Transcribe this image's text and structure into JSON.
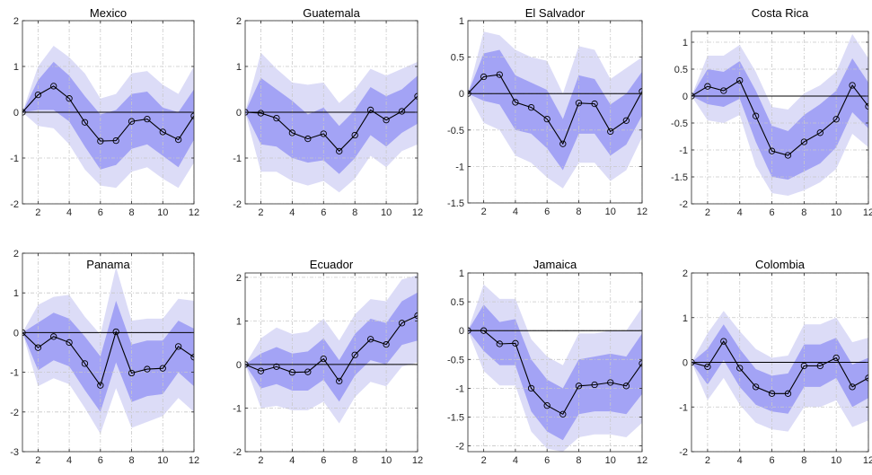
{
  "chart_data": [
    {
      "type": "line",
      "title": "Mexico",
      "x": [
        1,
        2,
        3,
        4,
        5,
        6,
        7,
        8,
        9,
        10,
        11,
        12
      ],
      "xlim": [
        1,
        12
      ],
      "ylim": [
        -2,
        2
      ],
      "xticks": [
        2,
        4,
        6,
        8,
        10,
        12
      ],
      "yticks": [
        -2,
        -1,
        0,
        1,
        2
      ],
      "grid": true,
      "series": [
        {
          "values": [
            0,
            0.38,
            0.57,
            0.3,
            -0.22,
            -0.63,
            -0.62,
            -0.2,
            -0.15,
            -0.43,
            -0.6,
            -0.08
          ]
        }
      ],
      "band_inner": {
        "lower": [
          0,
          0.05,
          0.05,
          -0.2,
          -0.75,
          -1.25,
          -1.15,
          -0.8,
          -0.7,
          -0.95,
          -1.2,
          -0.6
        ],
        "upper": [
          0,
          0.7,
          1.1,
          0.8,
          0.35,
          -0.05,
          0.05,
          0.4,
          0.45,
          0.1,
          0,
          0.5
        ]
      },
      "band_outer": {
        "lower": [
          0,
          -0.3,
          -0.35,
          -0.7,
          -1.25,
          -1.6,
          -1.65,
          -1.3,
          -1.2,
          -1.45,
          -1.65,
          -1.1
        ],
        "upper": [
          0,
          1,
          1.45,
          1.2,
          0.85,
          0.3,
          0.4,
          0.85,
          0.9,
          0.6,
          0.4,
          1
        ]
      }
    },
    {
      "type": "line",
      "title": "Guatemala",
      "x": [
        1,
        2,
        3,
        4,
        5,
        6,
        7,
        8,
        9,
        10,
        11,
        12
      ],
      "xlim": [
        1,
        12
      ],
      "ylim": [
        -2,
        2
      ],
      "xticks": [
        2,
        4,
        6,
        8,
        10,
        12
      ],
      "yticks": [
        -2,
        -1,
        0,
        1,
        2
      ],
      "grid": true,
      "series": [
        {
          "values": [
            0,
            -0.02,
            -0.13,
            -0.45,
            -0.58,
            -0.47,
            -0.85,
            -0.5,
            0.05,
            -0.17,
            0.02,
            0.35
          ]
        }
      ],
      "band_inner": {
        "lower": [
          0,
          -0.7,
          -0.75,
          -1.0,
          -1.1,
          -1.05,
          -1.35,
          -1.0,
          -0.5,
          -0.75,
          -0.45,
          -0.25
        ],
        "upper": [
          0,
          0.75,
          0.5,
          0.25,
          -0.05,
          0.1,
          -0.3,
          0.05,
          0.55,
          0.35,
          0.5,
          0.8
        ]
      },
      "band_outer": {
        "lower": [
          0,
          -1.3,
          -1.3,
          -1.5,
          -1.6,
          -1.5,
          -1.75,
          -1.45,
          -0.95,
          -1.2,
          -0.85,
          -0.7
        ],
        "upper": [
          0,
          1.3,
          0.95,
          0.65,
          0.6,
          0.65,
          0.2,
          0.5,
          0.95,
          0.8,
          0.95,
          1.1
        ]
      }
    },
    {
      "type": "line",
      "title": "El Salvador",
      "x": [
        1,
        2,
        3,
        4,
        5,
        6,
        7,
        8,
        9,
        10,
        11,
        12
      ],
      "xlim": [
        1,
        12
      ],
      "ylim": [
        -1.5,
        1
      ],
      "xticks": [
        2,
        4,
        6,
        8,
        10,
        12
      ],
      "yticks": [
        -1.5,
        -1,
        -0.5,
        0,
        0.5,
        1
      ],
      "grid": true,
      "series": [
        {
          "values": [
            0,
            0.23,
            0.26,
            -0.12,
            -0.19,
            -0.35,
            -0.69,
            -0.13,
            -0.14,
            -0.52,
            -0.37,
            0.03
          ]
        }
      ],
      "band_inner": {
        "lower": [
          0,
          -0.1,
          -0.15,
          -0.5,
          -0.55,
          -0.75,
          -1.05,
          -0.55,
          -0.55,
          -0.85,
          -0.7,
          -0.3
        ],
        "upper": [
          0,
          0.55,
          0.6,
          0.25,
          0.15,
          0.05,
          -0.35,
          0.25,
          0.2,
          -0.15,
          0,
          0.3
        ]
      },
      "band_outer": {
        "lower": [
          0,
          -0.4,
          -0.5,
          -0.85,
          -0.95,
          -1.15,
          -1.3,
          -0.95,
          -0.95,
          -1.2,
          -1.05,
          -0.6
        ],
        "upper": [
          0,
          0.85,
          0.8,
          0.6,
          0.5,
          0.45,
          0,
          0.65,
          0.6,
          0.2,
          0.35,
          0.5
        ]
      }
    },
    {
      "type": "line",
      "title": "Costa Rica",
      "x": [
        1,
        2,
        3,
        4,
        5,
        6,
        7,
        8,
        9,
        10,
        11,
        12
      ],
      "xlim": [
        1,
        12
      ],
      "ylim": [
        -2,
        1.2
      ],
      "xticks": [
        2,
        4,
        6,
        8,
        10,
        12
      ],
      "yticks": [
        -2,
        -1.5,
        -1,
        -0.5,
        0,
        0.5,
        1
      ],
      "grid": true,
      "series": [
        {
          "values": [
            0,
            0.18,
            0.1,
            0.29,
            -0.37,
            -1.02,
            -1.1,
            -0.85,
            -0.68,
            -0.43,
            0.2,
            -0.19
          ]
        }
      ],
      "band_inner": {
        "lower": [
          0,
          -0.15,
          -0.2,
          -0.05,
          -0.85,
          -1.5,
          -1.55,
          -1.4,
          -1.25,
          -0.95,
          -0.3,
          -0.6
        ],
        "upper": [
          0,
          0.5,
          0.45,
          0.65,
          0.1,
          -0.55,
          -0.65,
          -0.35,
          -0.15,
          0.1,
          0.7,
          0.25
        ]
      },
      "band_outer": {
        "lower": [
          0,
          -0.45,
          -0.5,
          -0.35,
          -1.3,
          -1.8,
          -1.85,
          -1.75,
          -1.6,
          -1.35,
          -0.7,
          -0.95
        ],
        "upper": [
          0,
          0.75,
          0.75,
          0.95,
          0.45,
          -0.2,
          -0.25,
          0.05,
          0.2,
          0.45,
          1.15,
          0.7
        ]
      }
    },
    {
      "type": "line",
      "title": "Panama",
      "x": [
        1,
        2,
        3,
        4,
        5,
        6,
        7,
        8,
        9,
        10,
        11,
        12
      ],
      "xlim": [
        1,
        12
      ],
      "ylim": [
        -3,
        2
      ],
      "xticks": [
        2,
        4,
        6,
        8,
        10,
        12
      ],
      "yticks": [
        -3,
        -2,
        -1,
        0,
        1,
        2
      ],
      "grid": true,
      "series": [
        {
          "values": [
            0,
            -0.38,
            -0.1,
            -0.25,
            -0.78,
            -1.33,
            0.02,
            -1.02,
            -0.92,
            -0.9,
            -0.35,
            -0.62
          ]
        }
      ],
      "band_inner": {
        "lower": [
          0,
          -0.95,
          -0.7,
          -0.85,
          -1.45,
          -2.0,
          -0.75,
          -1.75,
          -1.6,
          -1.55,
          -1.0,
          -1.35
        ],
        "upper": [
          0,
          0.25,
          0.5,
          0.35,
          -0.1,
          -0.6,
          0.8,
          -0.3,
          -0.2,
          -0.2,
          0.3,
          0.1
        ]
      },
      "band_outer": {
        "lower": [
          0,
          -1.35,
          -1.15,
          -1.3,
          -1.9,
          -2.55,
          -1.4,
          -2.4,
          -2.25,
          -2.1,
          -1.65,
          -2.0
        ],
        "upper": [
          0,
          0.7,
          0.9,
          0.95,
          0.4,
          -0.05,
          1.65,
          0.3,
          0.35,
          0.35,
          0.85,
          0.8
        ]
      }
    },
    {
      "type": "line",
      "title": "Ecuador",
      "x": [
        1,
        2,
        3,
        4,
        5,
        6,
        7,
        8,
        9,
        10,
        11,
        12
      ],
      "xlim": [
        1,
        12
      ],
      "ylim": [
        -2,
        2.1
      ],
      "xticks": [
        2,
        4,
        6,
        8,
        10,
        12
      ],
      "yticks": [
        -2,
        -1,
        0,
        1,
        2
      ],
      "grid": true,
      "series": [
        {
          "values": [
            0,
            -0.15,
            -0.05,
            -0.18,
            -0.17,
            0.13,
            -0.38,
            0.22,
            0.58,
            0.46,
            0.95,
            1.12
          ]
        }
      ],
      "band_inner": {
        "lower": [
          0,
          -0.55,
          -0.45,
          -0.6,
          -0.6,
          -0.35,
          -0.85,
          -0.25,
          0.1,
          0.0,
          0.45,
          0.55
        ],
        "upper": [
          0,
          0.25,
          0.4,
          0.25,
          0.3,
          0.6,
          0.1,
          0.7,
          1.05,
          0.95,
          1.45,
          1.65
        ]
      },
      "band_outer": {
        "lower": [
          0,
          -1.0,
          -0.95,
          -1.05,
          -1.05,
          -0.85,
          -1.35,
          -0.75,
          -0.4,
          -0.5,
          -0.05,
          0.05
        ],
        "upper": [
          0,
          0.6,
          0.85,
          0.7,
          0.75,
          1.05,
          0.55,
          1.15,
          1.5,
          1.45,
          1.95,
          2.05
        ]
      }
    },
    {
      "type": "line",
      "title": "Jamaica",
      "x": [
        1,
        2,
        3,
        4,
        5,
        6,
        7,
        8,
        9,
        10,
        11,
        12
      ],
      "xlim": [
        1,
        12
      ],
      "ylim": [
        -2.1,
        1
      ],
      "xticks": [
        2,
        4,
        6,
        8,
        10,
        12
      ],
      "yticks": [
        -2,
        -1.5,
        -1,
        -0.5,
        0,
        0.5,
        1
      ],
      "grid": true,
      "series": [
        {
          "values": [
            0,
            0,
            -0.23,
            -0.22,
            -1.0,
            -1.3,
            -1.45,
            -0.96,
            -0.94,
            -0.9,
            -0.96,
            -0.57
          ]
        }
      ],
      "band_inner": {
        "lower": [
          0,
          -0.35,
          -0.6,
          -0.6,
          -1.4,
          -1.75,
          -1.9,
          -1.45,
          -1.4,
          -1.4,
          -1.45,
          -1.1
        ],
        "upper": [
          0,
          0.45,
          0.15,
          0.2,
          -0.5,
          -0.85,
          -1.0,
          -0.5,
          -0.45,
          -0.4,
          -0.45,
          -0.05
        ]
      },
      "band_outer": {
        "lower": [
          0,
          -0.7,
          -0.95,
          -0.95,
          -1.75,
          -2.05,
          -2.1,
          -1.85,
          -1.8,
          -1.8,
          -1.85,
          -1.6
        ],
        "upper": [
          0,
          0.8,
          0.55,
          0.55,
          -0.15,
          -0.45,
          -0.6,
          -0.05,
          -0.05,
          0,
          0,
          0.4
        ]
      }
    },
    {
      "type": "line",
      "title": "Colombia",
      "x": [
        1,
        2,
        3,
        4,
        5,
        6,
        7,
        8,
        9,
        10,
        11,
        12
      ],
      "xlim": [
        1,
        12
      ],
      "ylim": [
        -2,
        2
      ],
      "xticks": [
        2,
        4,
        6,
        8,
        10,
        12
      ],
      "yticks": [
        -2,
        -1,
        0,
        1,
        2
      ],
      "grid": true,
      "series": [
        {
          "values": [
            0,
            -0.1,
            0.47,
            -0.13,
            -0.55,
            -0.7,
            -0.7,
            -0.08,
            -0.08,
            0.1,
            -0.55,
            -0.35
          ]
        }
      ],
      "band_inner": {
        "lower": [
          0,
          -0.5,
          0.05,
          -0.55,
          -0.95,
          -1.1,
          -1.15,
          -0.55,
          -0.55,
          -0.35,
          -1.0,
          -0.8
        ],
        "upper": [
          0,
          0.3,
          0.85,
          0.3,
          -0.15,
          -0.3,
          -0.25,
          0.4,
          0.4,
          0.55,
          -0.05,
          0.1
        ]
      },
      "band_outer": {
        "lower": [
          0,
          -0.85,
          -0.35,
          -0.95,
          -1.35,
          -1.5,
          -1.55,
          -1.0,
          -1.0,
          -0.85,
          -1.45,
          -1.3
        ],
        "upper": [
          0,
          0.65,
          1.15,
          0.7,
          0.3,
          0.1,
          0.15,
          0.85,
          0.85,
          1.0,
          0.45,
          0.55
        ]
      }
    }
  ],
  "colors": {
    "band_outer": "#dcdcf7",
    "band_inner": "#a3a3f5",
    "line": "#000000",
    "zero_line": "#000000",
    "grid": "#c8c8c8",
    "axis": "#262626"
  }
}
